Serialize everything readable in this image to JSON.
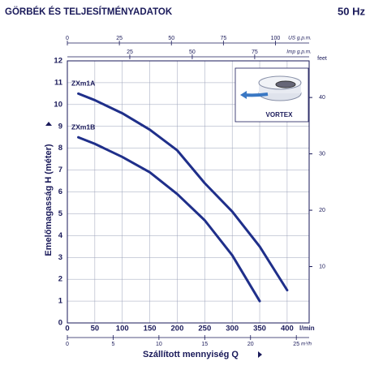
{
  "chart_data": {
    "type": "line",
    "title": "GÖRBÉK ÉS TELJESÍTMÉNYADATOK",
    "subtitle": "50 Hz",
    "x_label": "Szállított mennyiség Q",
    "x_unit": "l/min",
    "y_label": "Emelőmagasság H (méter)",
    "xlim": [
      0,
      440
    ],
    "ylim": [
      0,
      12
    ],
    "xticks": [
      0,
      50,
      100,
      150,
      200,
      250,
      300,
      350,
      400
    ],
    "yticks": [
      0,
      1,
      2,
      3,
      4,
      5,
      6,
      7,
      8,
      9,
      10,
      11,
      12
    ],
    "grid": true,
    "series": [
      {
        "name": "ZXm1A",
        "color": "#1f2f8a",
        "x": [
          20,
          50,
          100,
          150,
          200,
          250,
          300,
          350,
          400
        ],
        "values": [
          10.5,
          10.2,
          9.6,
          8.85,
          7.9,
          6.4,
          5.1,
          3.5,
          1.5
        ]
      },
      {
        "name": "ZXm1B",
        "color": "#1f2f8a",
        "x": [
          20,
          50,
          100,
          150,
          200,
          250,
          300,
          350
        ],
        "values": [
          8.5,
          8.2,
          7.6,
          6.9,
          5.9,
          4.7,
          3.1,
          1.0
        ]
      }
    ],
    "x2_axes": [
      {
        "unit": "US g.p.m.",
        "position": "top",
        "lim": [
          0,
          116.2
        ],
        "ticks": [
          0,
          25,
          50,
          75,
          100
        ]
      },
      {
        "unit": "Imp g.p.m.",
        "position": "top-inner",
        "lim": [
          0,
          96.8
        ],
        "ticks": [
          25,
          50,
          75
        ]
      },
      {
        "unit": "m³/h",
        "position": "bottom",
        "lim": [
          0,
          26.4
        ],
        "ticks": [
          0,
          5,
          10,
          15,
          20,
          25
        ]
      }
    ],
    "y2_unit": "feet",
    "y2lim": [
      0,
      46.5
    ],
    "y2ticks": [
      10,
      20,
      30,
      40
    ],
    "inset_label": "VORTEX"
  }
}
